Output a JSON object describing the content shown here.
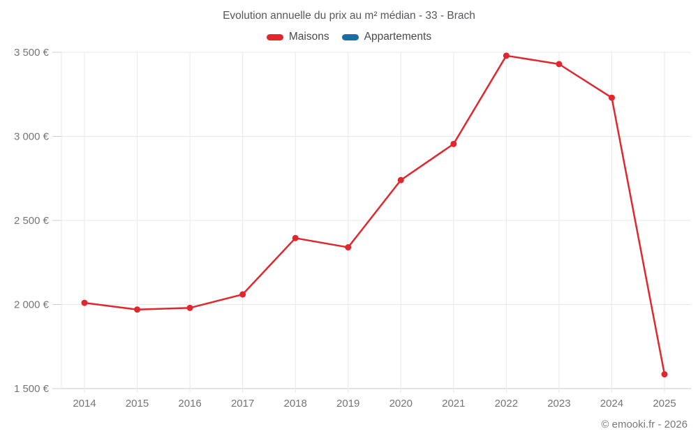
{
  "page": {
    "title": "Evolution annuelle du prix au m² médian - 33 - Brach",
    "footer": "© emooki.fr - 2026"
  },
  "legend": [
    {
      "label": "Maisons",
      "color": "#e0272d"
    },
    {
      "label": "Appartements",
      "color": "#1a6ea4"
    }
  ],
  "chart_data": {
    "type": "line",
    "title": "Evolution annuelle du prix au m² médian - 33 - Brach",
    "xlabel": "",
    "ylabel": "",
    "categories": [
      "2014",
      "2015",
      "2016",
      "2017",
      "2018",
      "2019",
      "2020",
      "2021",
      "2022",
      "2023",
      "2024",
      "2025"
    ],
    "series": [
      {
        "name": "Maisons",
        "color": "#e0272d",
        "values": [
          2010,
          1970,
          1980,
          2060,
          2395,
          2340,
          2740,
          2955,
          3480,
          3430,
          3230,
          1585
        ]
      },
      {
        "name": "Appartements",
        "color": "#1a6ea4",
        "values": []
      }
    ],
    "ylim": [
      1500,
      3500
    ],
    "ytick_step": 500,
    "ytick_labels": [
      "1 500 €",
      "2 000 €",
      "2 500 €",
      "3 000 €",
      "3 500 €"
    ],
    "grid": true,
    "legend_position": "top"
  }
}
